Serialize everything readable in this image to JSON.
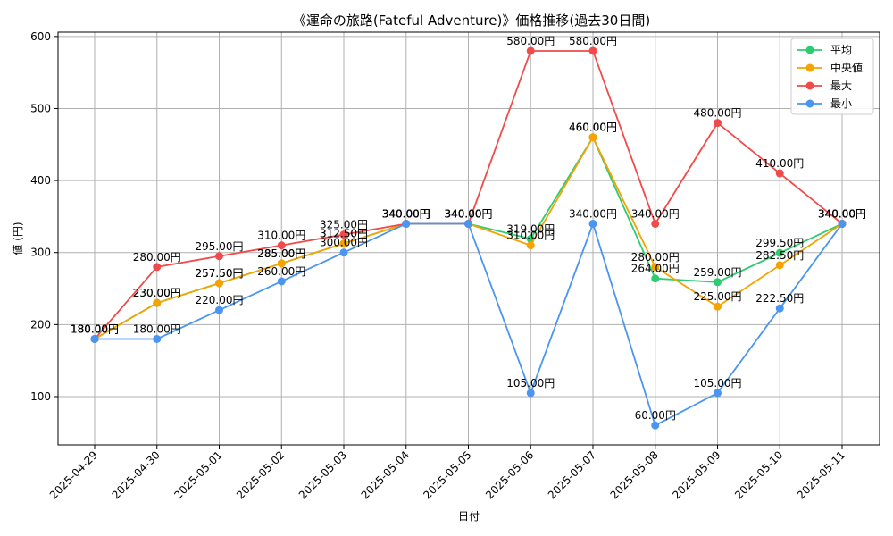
{
  "chart_data": {
    "type": "line",
    "title": "《運命の旅路(Fateful Adventure)》価格推移(過去30日間)",
    "xlabel": "日付",
    "ylabel": "値 (円)",
    "ylim": [
      33,
      606
    ],
    "yticks": [
      100,
      200,
      300,
      400,
      500,
      600
    ],
    "grid": true,
    "legend_position": "top-right",
    "categories": [
      "2025-04-29",
      "2025-04-30",
      "2025-05-01",
      "2025-05-02",
      "2025-05-03",
      "2025-05-04",
      "2025-05-05",
      "2025-05-06",
      "2025-05-07",
      "2025-05-08",
      "2025-05-09",
      "2025-05-10",
      "2025-05-11"
    ],
    "series": [
      {
        "name": "平均",
        "color": "#2ecc71",
        "values": [
          180,
          230,
          257.5,
          285,
          312.5,
          340,
          340,
          319,
          460,
          264,
          259,
          299.5,
          340
        ],
        "labels": [
          "180.00円",
          "230.00円",
          "257.50円",
          "285.00円",
          "312.50円",
          "340.00円",
          "340.00円",
          "319.00円",
          "460.00円",
          "264.00円",
          "259.00円",
          "299.50円",
          "340.00円"
        ]
      },
      {
        "name": "中央値",
        "color": "#f5a300",
        "values": [
          180,
          230,
          257.5,
          285,
          312.5,
          340,
          340,
          310,
          460,
          280,
          225,
          282.5,
          340
        ],
        "labels": [
          "180.00円",
          "230.00円",
          "257.50円",
          "285.00円",
          "312.50円",
          "340.00円",
          "340.00円",
          "310.00円",
          "460.00円",
          "280.00円",
          "225.00円",
          "282.50円",
          "340.00円"
        ]
      },
      {
        "name": "最大",
        "color": "#f04a4a",
        "values": [
          180,
          280,
          295,
          310,
          325,
          340,
          340,
          580,
          580,
          340,
          480,
          410,
          340
        ],
        "labels": [
          "180.00円",
          "280.00円",
          "295.00円",
          "310.00円",
          "325.00円",
          "340.00円",
          "340.00円",
          "580.00円",
          "580.00円",
          "340.00円",
          "480.00円",
          "410.00円",
          "340.00円"
        ]
      },
      {
        "name": "最小",
        "color": "#4a95f0",
        "values": [
          180,
          180,
          220,
          260,
          300,
          340,
          340,
          105,
          340,
          60,
          105,
          222.5,
          340
        ],
        "labels": [
          "180.00円",
          "180.00円",
          "220.00円",
          "260.00円",
          "300.00円",
          "340.00円",
          "340.00円",
          "105.00円",
          "340.00円",
          "60.00円",
          "105.00円",
          "222.50円",
          "340.00円"
        ]
      }
    ]
  }
}
